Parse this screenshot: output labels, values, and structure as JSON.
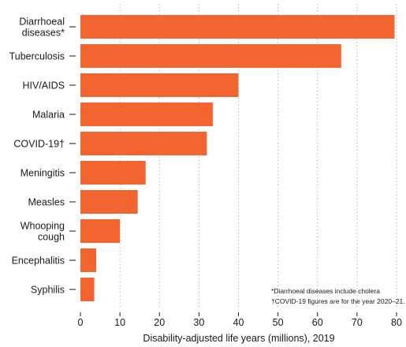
{
  "chart_data": {
    "type": "bar",
    "orientation": "horizontal",
    "categories": [
      [
        "Diarrhoeal",
        "diseases*"
      ],
      [
        "Tuberculosis"
      ],
      [
        "HIV/AIDS"
      ],
      [
        "Malaria"
      ],
      [
        "COVID-19†"
      ],
      [
        "Meningitis"
      ],
      [
        "Measles"
      ],
      [
        "Whooping",
        "cough"
      ],
      [
        "Encephalitis"
      ],
      [
        "Syphilis"
      ]
    ],
    "values": [
      79.5,
      66,
      40,
      33.5,
      32,
      16.5,
      14.5,
      10,
      4,
      3.5
    ],
    "xlabel": "Disability-adjusted life years (millions), 2019",
    "ylabel": "",
    "xlim": [
      0,
      80
    ],
    "xticks": [
      0,
      10,
      20,
      30,
      40,
      50,
      60,
      70,
      80
    ],
    "grid": "vertical dotted",
    "bar_color": "#f26430",
    "footnotes": [
      "*Diarrhoeal diseases include cholera",
      "†COVID-19 figures are for the year  2020–21."
    ]
  }
}
